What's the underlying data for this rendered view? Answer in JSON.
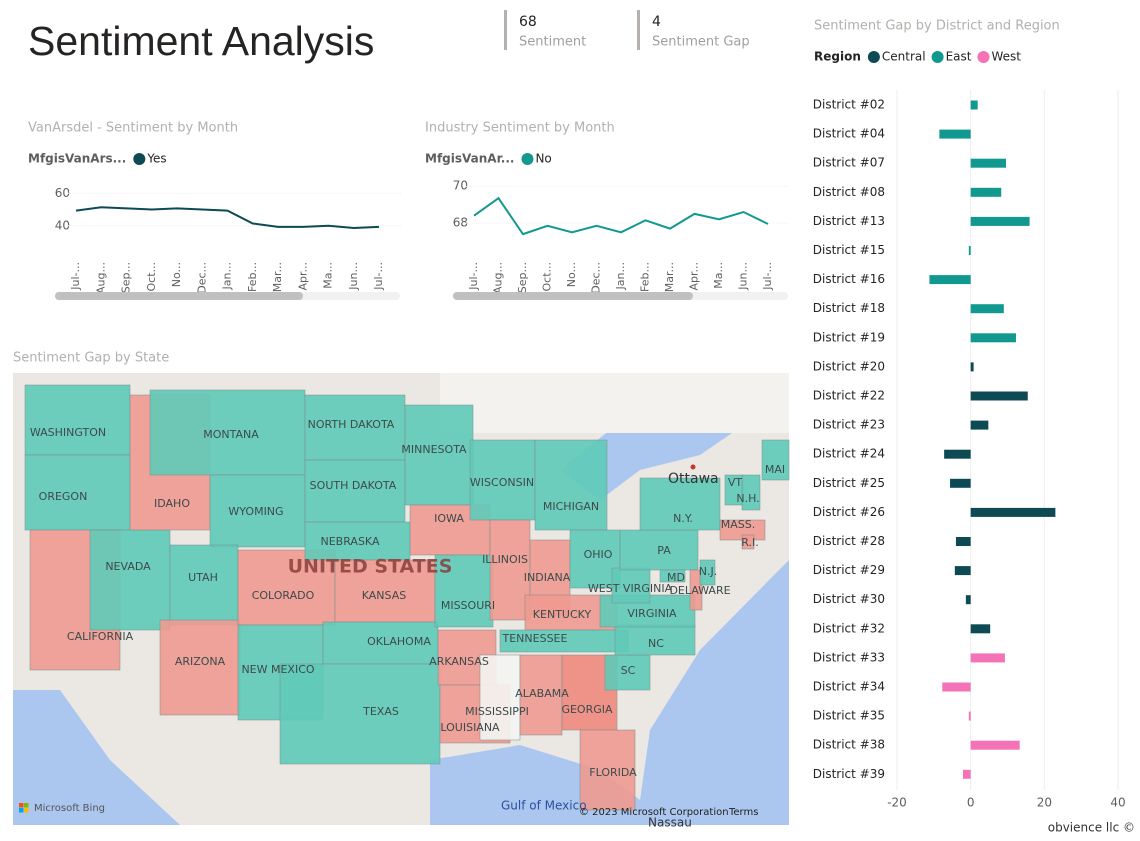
{
  "header": {
    "title": "Sentiment Analysis"
  },
  "cards": [
    {
      "value": 68,
      "label": "Sentiment"
    },
    {
      "value": 4,
      "label": "Sentiment Gap"
    }
  ],
  "chart_data": [
    {
      "type": "line",
      "title": "VanArsdel - Sentiment by Month",
      "legend_title": "MfgisVanArs...",
      "categories": [
        "Jul-...",
        "Aug...",
        "Sep...",
        "Oct...",
        "No...",
        "Dec...",
        "Jan...",
        "Feb...",
        "Mar...",
        "Apr...",
        "Ma...",
        "Jun...",
        "Jul-..."
      ],
      "series": [
        {
          "name": "Yes",
          "color": "#0d4a54",
          "values": [
            49.3,
            51.4,
            50.7,
            50,
            50.7,
            50,
            49.3,
            41.4,
            39.3,
            39.3,
            40,
            38.6,
            39.3
          ]
        }
      ],
      "ylim": [
        30,
        70
      ],
      "yticks": [
        40,
        60
      ],
      "grid": true
    },
    {
      "type": "line",
      "title": "Industry Sentiment by Month",
      "legend_title": "MfgisVanAr...",
      "categories": [
        "Jul-...",
        "Aug...",
        "Sep...",
        "Oct...",
        "No...",
        "Dec...",
        "Jan...",
        "Feb...",
        "Mar...",
        "Apr...",
        "Ma...",
        "Jun...",
        "Jul-..."
      ],
      "series": [
        {
          "name": "No",
          "color": "#12998f",
          "values": [
            68.4,
            69.35,
            67.4,
            67.85,
            67.5,
            67.85,
            67.5,
            68.15,
            67.7,
            68.5,
            68.2,
            68.6,
            67.95
          ]
        }
      ],
      "ylim": [
        67,
        70.5
      ],
      "yticks": [
        68,
        70
      ],
      "grid": true
    },
    {
      "type": "map",
      "title": "Sentiment Gap by State",
      "country_label": "UNITED STATES",
      "places": [
        "Ottawa",
        "Gulf of Mexico",
        "Nassau"
      ],
      "provider": "Microsoft Bing",
      "attribution": "© 2023 Microsoft Corporation",
      "terms": "Terms",
      "regions": [
        {
          "name": "WASHINGTON",
          "color": "#5fcab8"
        },
        {
          "name": "OREGON",
          "color": "#5fcab8"
        },
        {
          "name": "CALIFORNIA",
          "color": "#ee9a90"
        },
        {
          "name": "NEVADA",
          "color": "#5fcab8"
        },
        {
          "name": "IDAHO",
          "color": "#ee9a90"
        },
        {
          "name": "MONTANA",
          "color": "#5fcab8"
        },
        {
          "name": "WYOMING",
          "color": "#5fcab8"
        },
        {
          "name": "UTAH",
          "color": "#5fcab8"
        },
        {
          "name": "ARIZONA",
          "color": "#ee9a90"
        },
        {
          "name": "COLORADO",
          "color": "#ee9a90"
        },
        {
          "name": "NEW MEXICO",
          "color": "#5fcab8"
        },
        {
          "name": "NORTH DAKOTA",
          "color": "#5fcab8"
        },
        {
          "name": "SOUTH DAKOTA",
          "color": "#5fcab8"
        },
        {
          "name": "NEBRASKA",
          "color": "#5fcab8"
        },
        {
          "name": "KANSAS",
          "color": "#ee9a90"
        },
        {
          "name": "OKLAHOMA",
          "color": "#5fcab8"
        },
        {
          "name": "TEXAS",
          "color": "#5fcab8"
        },
        {
          "name": "MINNESOTA",
          "color": "#5fcab8"
        },
        {
          "name": "IOWA",
          "color": "#ee9a90"
        },
        {
          "name": "MISSOURI",
          "color": "#5fcab8"
        },
        {
          "name": "ARKANSAS",
          "color": "#ee9a90"
        },
        {
          "name": "LOUISIANA",
          "color": "#ee9a90"
        },
        {
          "name": "WISCONSIN",
          "color": "#5fcab8"
        },
        {
          "name": "ILLINOIS",
          "color": "#ee9a90"
        },
        {
          "name": "MICHIGAN",
          "color": "#5fcab8"
        },
        {
          "name": "INDIANA",
          "color": "#ee9a90"
        },
        {
          "name": "OHIO",
          "color": "#5fcab8"
        },
        {
          "name": "KENTUCKY",
          "color": "#ee9a90"
        },
        {
          "name": "TENNESSEE",
          "color": "#5fcab8"
        },
        {
          "name": "MISSISSIPPI",
          "color": "#f4f4f2"
        },
        {
          "name": "ALABAMA",
          "color": "#ee9a90"
        },
        {
          "name": "GEORGIA",
          "color": "#f08a7e"
        },
        {
          "name": "FLORIDA",
          "color": "#ee9a90"
        },
        {
          "name": "SC",
          "color": "#5fcab8"
        },
        {
          "name": "NC",
          "color": "#5fcab8"
        },
        {
          "name": "VIRGINIA",
          "color": "#5fcab8"
        },
        {
          "name": "WEST VIRGINIA",
          "color": "#5fcab8"
        },
        {
          "name": "PA",
          "color": "#5fcab8"
        },
        {
          "name": "N.Y.",
          "color": "#5fcab8"
        },
        {
          "name": "MD",
          "color": "#5fcab8"
        },
        {
          "name": "DELAWARE",
          "color": "#ee9a90"
        },
        {
          "name": "N.J.",
          "color": "#5fcab8"
        },
        {
          "name": "MASS.",
          "color": "#ee9a90"
        },
        {
          "name": "R.I.",
          "color": "#ee9a90"
        },
        {
          "name": "VT",
          "color": "#5fcab8"
        },
        {
          "name": "N.H.",
          "color": "#5fcab8"
        },
        {
          "name": "MAI",
          "color": "#5fcab8"
        }
      ]
    },
    {
      "type": "bar",
      "title": "Sentiment Gap by District and Region",
      "legend_title": "Region",
      "categories": [
        "District #02",
        "District #04",
        "District #07",
        "District #08",
        "District #13",
        "District #15",
        "District #16",
        "District #18",
        "District #19",
        "District #20",
        "District #22",
        "District #23",
        "District #24",
        "District #25",
        "District #26",
        "District #28",
        "District #29",
        "District #30",
        "District #32",
        "District #33",
        "District #34",
        "District #35",
        "District #38",
        "District #39"
      ],
      "series": [
        {
          "name": "Central",
          "color": "#0d4a54",
          "values": [
            null,
            null,
            null,
            null,
            null,
            null,
            null,
            null,
            null,
            0.8,
            15.5,
            4.8,
            -7.2,
            -5.6,
            23,
            -4,
            -4.3,
            -1.3,
            5.3,
            null,
            null,
            null,
            null,
            null
          ]
        },
        {
          "name": "East",
          "color": "#12998f",
          "values": [
            1.9,
            -8.5,
            9.6,
            8.3,
            16,
            -0.5,
            -11.2,
            9,
            12.3,
            null,
            null,
            null,
            null,
            null,
            null,
            null,
            null,
            null,
            null,
            null,
            null,
            null,
            null,
            null
          ]
        },
        {
          "name": "West",
          "color": "#f472b6",
          "values": [
            null,
            null,
            null,
            null,
            null,
            null,
            null,
            null,
            null,
            null,
            null,
            null,
            null,
            null,
            null,
            null,
            null,
            null,
            null,
            9.3,
            -7.7,
            -0.5,
            13.3,
            -2.1
          ]
        }
      ],
      "xlim": [
        -20,
        40
      ],
      "xticks": [
        -20,
        0,
        20,
        40
      ],
      "grid": true
    }
  ],
  "footer": "obvience llc ©"
}
